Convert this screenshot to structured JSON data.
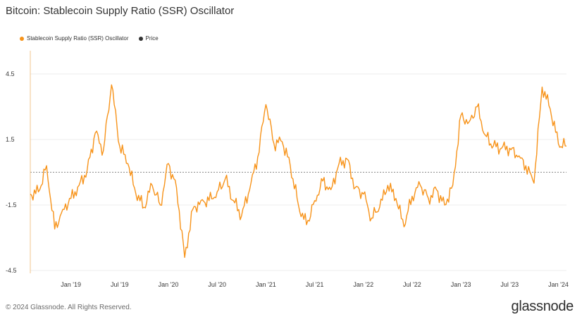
{
  "title": "Bitcoin: Stablecoin Supply Ratio (SSR) Oscillator",
  "legend": [
    {
      "label": "Stablecoin Supply Ratio (SSR) Oscillator",
      "color": "#f7931a"
    },
    {
      "label": "Price",
      "color": "#333333"
    }
  ],
  "footer": "© 2024 Glassnode. All Rights Reserved.",
  "brand": "glassnode",
  "chart_data": {
    "type": "line",
    "title": "Bitcoin: Stablecoin Supply Ratio (SSR) Oscillator",
    "xlabel": "",
    "ylabel": "",
    "x_ticks": [
      "Jan '19",
      "Jul '19",
      "Jan '20",
      "Jul '20",
      "Jan '21",
      "Jul '21",
      "Jan '22",
      "Jul '22",
      "Jan '23",
      "Jul '23",
      "Jan '24"
    ],
    "x_tick_positions": [
      "2019-01",
      "2019-07",
      "2020-01",
      "2020-07",
      "2021-01",
      "2021-07",
      "2022-01",
      "2022-07",
      "2023-01",
      "2023-07",
      "2024-01"
    ],
    "y_ticks": [
      "4.5",
      "1.5",
      "-1.5",
      "-4.5"
    ],
    "ylim": [
      -4.5,
      4.5
    ],
    "xlim": [
      "2018-08",
      "2024-02"
    ],
    "grid": true,
    "legend_position": "top-left",
    "series": [
      {
        "name": "Stablecoin Supply Ratio (SSR) Oscillator",
        "color": "#f7931a",
        "x": [
          "2018-08",
          "2018-09",
          "2018-10",
          "2018-11",
          "2018-12",
          "2019-01",
          "2019-02",
          "2019-03",
          "2019-04",
          "2019-05",
          "2019-06",
          "2019-07",
          "2019-08",
          "2019-09",
          "2019-10",
          "2019-11",
          "2019-12",
          "2020-01",
          "2020-02",
          "2020-03",
          "2020-04",
          "2020-05",
          "2020-06",
          "2020-07",
          "2020-08",
          "2020-09",
          "2020-10",
          "2020-11",
          "2020-12",
          "2021-01",
          "2021-02",
          "2021-03",
          "2021-04",
          "2021-05",
          "2021-06",
          "2021-07",
          "2021-08",
          "2021-09",
          "2021-10",
          "2021-11",
          "2021-12",
          "2022-01",
          "2022-02",
          "2022-03",
          "2022-04",
          "2022-05",
          "2022-06",
          "2022-07",
          "2022-08",
          "2022-09",
          "2022-10",
          "2022-11",
          "2022-12",
          "2023-01",
          "2023-02",
          "2023-03",
          "2023-04",
          "2023-05",
          "2023-06",
          "2023-07",
          "2023-08",
          "2023-09",
          "2023-10",
          "2023-11",
          "2023-12",
          "2024-01",
          "2024-02"
        ],
        "values": [
          -1.0,
          -0.9,
          0.3,
          -2.6,
          -1.7,
          -1.2,
          -0.6,
          0.1,
          1.8,
          1.0,
          4.0,
          1.2,
          0.4,
          -1.0,
          -1.6,
          -0.6,
          -1.5,
          0.4,
          -0.7,
          -3.9,
          -1.7,
          -1.3,
          -1.3,
          -0.9,
          -0.3,
          -1.3,
          -2.0,
          -0.8,
          0.7,
          3.1,
          1.3,
          1.4,
          0.3,
          -1.5,
          -2.4,
          -1.3,
          -0.4,
          -0.8,
          0.4,
          0.6,
          -0.7,
          -1.0,
          -2.1,
          -1.6,
          -0.6,
          -1.2,
          -2.5,
          -1.1,
          -0.6,
          -1.2,
          -0.8,
          -1.5,
          -0.6,
          2.6,
          2.3,
          3.0,
          1.7,
          1.2,
          1.1,
          1.1,
          0.7,
          0.3,
          -0.5,
          3.9,
          2.9,
          1.3,
          1.2
        ]
      }
    ],
    "reference_line": 0
  }
}
